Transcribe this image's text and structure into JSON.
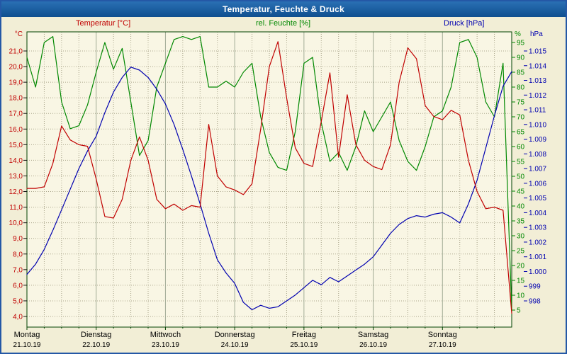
{
  "window": {
    "title": "Temperatur, Feuchte & Druck"
  },
  "legend": {
    "temperature": "Temperatur [°C]",
    "humidity": "rel. Feuchte [%]",
    "pressure": "Druck [hPa]"
  },
  "axes": {
    "temp_unit": "°C",
    "humidity_unit": "%",
    "pressure_unit": "hPa",
    "temp_ticks": [
      "21,0",
      "20,0",
      "19,0",
      "18,0",
      "17,0",
      "16,0",
      "15,0",
      "14,0",
      "13,0",
      "12,0",
      "11,0",
      "10,0",
      "9,0",
      "8,0",
      "7,0",
      "6,0",
      "5,0",
      "4,0"
    ],
    "humidity_ticks": [
      "95",
      "90",
      "85",
      "80",
      "75",
      "70",
      "65",
      "60",
      "55",
      "50",
      "45",
      "40",
      "35",
      "30",
      "25",
      "20",
      "15",
      "10",
      "5"
    ],
    "pressure_ticks": [
      "1.015",
      "1.014",
      "1.013",
      "1.012",
      "1.011",
      "1.010",
      "1.009",
      "1.008",
      "1.007",
      "1.006",
      "1.005",
      "1.004",
      "1.003",
      "1.002",
      "1.001",
      "1.000",
      "999",
      "998"
    ],
    "days": [
      {
        "name": "Montag",
        "date": "21.10.19"
      },
      {
        "name": "Dienstag",
        "date": "22.10.19"
      },
      {
        "name": "Mittwoch",
        "date": "23.10.19"
      },
      {
        "name": "Donnerstag",
        "date": "24.10.19"
      },
      {
        "name": "Freitag",
        "date": "25.10.19"
      },
      {
        "name": "Samstag",
        "date": "26.10.19"
      },
      {
        "name": "Sonntag",
        "date": "27.10.19"
      }
    ]
  },
  "colors": {
    "temperature": "#c00000",
    "humidity": "#008800",
    "pressure": "#0000b0",
    "frame": "#004200",
    "grid_day": "#a2ab96",
    "grid_dot": "#aaa68c",
    "xlabel": "#000000",
    "plot_bg": "#f9f6e4",
    "window_bg": "#f2eed6",
    "titlebar": "#1c5fa8",
    "border": "#2458a6"
  },
  "chart_data": {
    "type": "line",
    "title": "Temperatur, Feuchte & Druck",
    "x_unit": "hours since Mon 21.10.19 00:00",
    "x_range_hours": [
      0,
      168
    ],
    "x_days": [
      "Montag 21.10.19",
      "Dienstag 22.10.19",
      "Mittwoch 23.10.19",
      "Donnerstag 24.10.19",
      "Freitag 25.10.19",
      "Samstag 26.10.19",
      "Sonntag 27.10.19"
    ],
    "grid": true,
    "legend_position": "top",
    "x_hours": [
      0,
      3,
      6,
      9,
      12,
      15,
      18,
      21,
      24,
      27,
      30,
      33,
      36,
      39,
      42,
      45,
      48,
      51,
      54,
      57,
      60,
      63,
      66,
      69,
      72,
      75,
      78,
      81,
      84,
      87,
      90,
      93,
      96,
      99,
      102,
      105,
      108,
      111,
      114,
      117,
      120,
      123,
      126,
      129,
      132,
      135,
      138,
      141,
      144,
      147,
      150,
      153,
      156,
      159,
      162,
      165,
      168
    ],
    "series": [
      {
        "name": "Temperatur",
        "unit": "°C",
        "color": "#c00000",
        "axis_range": [
          4,
          21
        ],
        "values": [
          12.2,
          12.2,
          12.3,
          13.8,
          16.2,
          15.3,
          15.0,
          14.9,
          12.8,
          10.4,
          10.3,
          11.5,
          14.0,
          15.5,
          14.0,
          11.5,
          10.9,
          11.2,
          10.8,
          11.1,
          11.0,
          16.3,
          13.0,
          12.3,
          12.1,
          11.8,
          12.5,
          16.0,
          20.0,
          21.6,
          18.0,
          14.8,
          13.8,
          13.6,
          16.5,
          19.6,
          14.2,
          18.2,
          15.0,
          14.0,
          13.6,
          13.4,
          15.0,
          19.0,
          21.2,
          20.5,
          17.5,
          16.8,
          16.6,
          17.2,
          16.9,
          14.0,
          12.0,
          10.9,
          11.0,
          10.8,
          4.2
        ]
      },
      {
        "name": "rel. Feuchte",
        "unit": "%",
        "color": "#008800",
        "axis_range": [
          5,
          95
        ],
        "values": [
          90,
          80,
          95,
          97,
          75,
          66,
          67,
          74,
          85,
          95,
          86,
          93,
          75,
          57,
          62,
          80,
          88,
          96,
          97,
          96,
          97,
          80,
          80,
          82,
          80,
          85,
          88,
          70,
          58,
          53,
          52,
          65,
          88,
          90,
          68,
          55,
          58,
          52,
          60,
          72,
          65,
          70,
          75,
          62,
          55,
          52,
          60,
          70,
          72,
          80,
          95,
          96,
          90,
          75,
          70,
          88,
          5
        ]
      },
      {
        "name": "Druck",
        "unit": "hPa",
        "color": "#0000b0",
        "axis_range": [
          998,
          1015
        ],
        "values": [
          999.8,
          1000.5,
          1001.5,
          1002.8,
          1004.2,
          1005.6,
          1007.0,
          1008.2,
          1009.2,
          1010.8,
          1012.2,
          1013.2,
          1013.9,
          1013.7,
          1013.2,
          1012.4,
          1011.4,
          1010.0,
          1008.3,
          1006.5,
          1004.6,
          1002.6,
          1000.8,
          999.9,
          999.2,
          997.9,
          997.4,
          997.7,
          997.5,
          997.6,
          998.0,
          998.4,
          998.9,
          999.4,
          999.1,
          999.6,
          999.3,
          999.7,
          1000.1,
          1000.5,
          1001.0,
          1001.8,
          1002.6,
          1003.2,
          1003.6,
          1003.8,
          1003.7,
          1003.9,
          1004.0,
          1003.7,
          1003.3,
          1004.6,
          1006.2,
          1008.4,
          1010.6,
          1012.6,
          1013.6
        ]
      }
    ]
  }
}
